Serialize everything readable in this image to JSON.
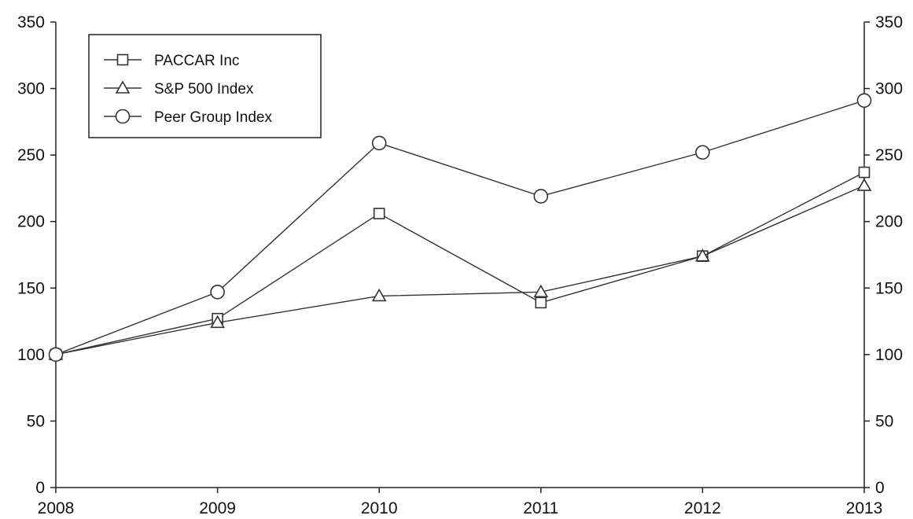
{
  "chart_data": {
    "type": "line",
    "x": [
      "2008",
      "2009",
      "2010",
      "2011",
      "2012",
      "2013"
    ],
    "ylim": [
      0,
      350
    ],
    "yticks": [
      0,
      50,
      100,
      150,
      200,
      250,
      300,
      350
    ],
    "right_axis": true,
    "grid": false,
    "legend_position": "top-left",
    "series": [
      {
        "name": "PACCAR Inc",
        "marker": "square",
        "values": [
          100,
          127,
          206,
          139,
          174,
          237
        ]
      },
      {
        "name": "S&P 500 Index",
        "marker": "triangle",
        "values": [
          100,
          124,
          144,
          147,
          174,
          227
        ]
      },
      {
        "name": "Peer Group Index",
        "marker": "circle",
        "values": [
          100,
          147,
          259,
          219,
          252,
          291
        ]
      }
    ]
  }
}
